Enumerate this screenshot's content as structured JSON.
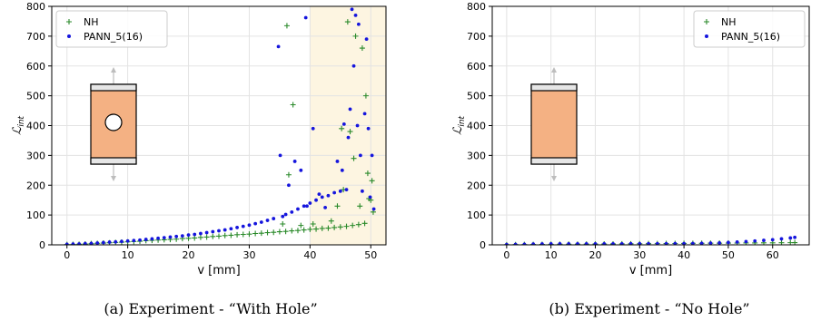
{
  "chart_data": [
    {
      "type": "scatter",
      "caption": "(a) Experiment - “With Hole”",
      "xlabel": "v [mm]",
      "ylabel": "ℒ",
      "ylabel_sub": "int",
      "xlim": [
        -2.5,
        52.5
      ],
      "ylim": [
        0,
        800
      ],
      "xticks": [
        0,
        10,
        20,
        30,
        40,
        50
      ],
      "yticks": [
        0,
        100,
        200,
        300,
        400,
        500,
        600,
        700,
        800
      ],
      "grid": true,
      "legend_position": "top-left",
      "highlight_region": {
        "x": [
          40,
          52.5
        ],
        "color": "#fdf5e1"
      },
      "specimen": {
        "has_hole": true
      },
      "series": [
        {
          "name": "NH",
          "marker": "plus",
          "color": "#2a8a2a",
          "points": [
            [
              0,
              1
            ],
            [
              1,
              1.5
            ],
            [
              2,
              2
            ],
            [
              3,
              3
            ],
            [
              4,
              4
            ],
            [
              5,
              5
            ],
            [
              6,
              6
            ],
            [
              7,
              7
            ],
            [
              8,
              8
            ],
            [
              9,
              9
            ],
            [
              10,
              10
            ],
            [
              11,
              11
            ],
            [
              12,
              12
            ],
            [
              13,
              14
            ],
            [
              14,
              15
            ],
            [
              15,
              16
            ],
            [
              16,
              17
            ],
            [
              17,
              18
            ],
            [
              18,
              19
            ],
            [
              19,
              21
            ],
            [
              20,
              22
            ],
            [
              21,
              23
            ],
            [
              22,
              25
            ],
            [
              23,
              26
            ],
            [
              24,
              28
            ],
            [
              25,
              29
            ],
            [
              26,
              31
            ],
            [
              27,
              32
            ],
            [
              28,
              34
            ],
            [
              29,
              35
            ],
            [
              30,
              36
            ],
            [
              31,
              38
            ],
            [
              32,
              39
            ],
            [
              33,
              41
            ],
            [
              34,
              42
            ],
            [
              35,
              44
            ],
            [
              35.5,
              70
            ],
            [
              36,
              45
            ],
            [
              36.2,
              735
            ],
            [
              36.5,
              235
            ],
            [
              37,
              47
            ],
            [
              37.2,
              470
            ],
            [
              38,
              48
            ],
            [
              38.5,
              65
            ],
            [
              39,
              50
            ],
            [
              40,
              52
            ],
            [
              40.5,
              70
            ],
            [
              41,
              53
            ],
            [
              42,
              55
            ],
            [
              43,
              56
            ],
            [
              43.5,
              80
            ],
            [
              44,
              58
            ],
            [
              44.5,
              130
            ],
            [
              45,
              60
            ],
            [
              45.2,
              390
            ],
            [
              45.5,
              185
            ],
            [
              46,
              62
            ],
            [
              46.2,
              748
            ],
            [
              46.6,
              380
            ],
            [
              47,
              65
            ],
            [
              47.2,
              290
            ],
            [
              47.5,
              700
            ],
            [
              48,
              68
            ],
            [
              48.2,
              130
            ],
            [
              48.6,
              660
            ],
            [
              49,
              72
            ],
            [
              49.2,
              500
            ],
            [
              49.5,
              240
            ],
            [
              49.7,
              155
            ],
            [
              50,
              150
            ],
            [
              50.2,
              215
            ],
            [
              50.4,
              110
            ]
          ]
        },
        {
          "name": "PANN_5(16)",
          "marker": "dot",
          "color": "#1515dd",
          "points": [
            [
              0,
              2
            ],
            [
              1,
              2.5
            ],
            [
              2,
              3
            ],
            [
              3,
              4
            ],
            [
              4,
              5
            ],
            [
              5,
              6
            ],
            [
              6,
              7.5
            ],
            [
              7,
              9
            ],
            [
              8,
              10
            ],
            [
              9,
              11.5
            ],
            [
              10,
              13
            ],
            [
              11,
              14.5
            ],
            [
              12,
              16
            ],
            [
              13,
              18
            ],
            [
              14,
              20
            ],
            [
              15,
              22
            ],
            [
              16,
              24
            ],
            [
              17,
              26
            ],
            [
              18,
              28
            ],
            [
              19,
              30
            ],
            [
              20,
              33
            ],
            [
              21,
              35
            ],
            [
              22,
              38
            ],
            [
              23,
              41
            ],
            [
              24,
              44
            ],
            [
              25,
              47
            ],
            [
              26,
              50
            ],
            [
              27,
              54
            ],
            [
              28,
              58
            ],
            [
              29,
              62
            ],
            [
              30,
              66
            ],
            [
              31,
              71
            ],
            [
              32,
              76
            ],
            [
              33,
              82
            ],
            [
              34,
              88
            ],
            [
              34.8,
              665
            ],
            [
              35.1,
              300
            ],
            [
              35.5,
              95
            ],
            [
              36,
              102
            ],
            [
              36.5,
              200
            ],
            [
              37,
              110
            ],
            [
              37.5,
              280
            ],
            [
              38,
              120
            ],
            [
              38.5,
              250
            ],
            [
              39,
              130
            ],
            [
              39.3,
              762
            ],
            [
              39.5,
              130
            ],
            [
              40,
              140
            ],
            [
              40.5,
              390
            ],
            [
              41,
              150
            ],
            [
              41.5,
              170
            ],
            [
              42,
              160
            ],
            [
              42.5,
              125
            ],
            [
              43,
              165
            ],
            [
              44,
              175
            ],
            [
              44.5,
              280
            ],
            [
              45,
              180
            ],
            [
              45.3,
              250
            ],
            [
              45.6,
              405
            ],
            [
              46,
              185
            ],
            [
              46.3,
              360
            ],
            [
              46.6,
              455
            ],
            [
              46.9,
              790
            ],
            [
              47.2,
              600
            ],
            [
              47.5,
              770
            ],
            [
              47.8,
              400
            ],
            [
              48,
              740
            ],
            [
              48.3,
              300
            ],
            [
              48.6,
              180
            ],
            [
              49,
              440
            ],
            [
              49.3,
              690
            ],
            [
              49.6,
              390
            ],
            [
              49.9,
              160
            ],
            [
              50.2,
              300
            ],
            [
              50.5,
              120
            ]
          ]
        }
      ]
    },
    {
      "type": "scatter",
      "caption": "(b) Experiment - “No Hole”",
      "xlabel": "v [mm]",
      "ylabel": "ℒ",
      "ylabel_sub": "int",
      "xlim": [
        -3.25,
        68.25
      ],
      "ylim": [
        0,
        800
      ],
      "xticks": [
        0,
        10,
        20,
        30,
        40,
        50,
        60
      ],
      "yticks": [
        0,
        100,
        200,
        300,
        400,
        500,
        600,
        700,
        800
      ],
      "grid": true,
      "legend_position": "top-right",
      "specimen": {
        "has_hole": false
      },
      "series": [
        {
          "name": "NH",
          "marker": "plus",
          "color": "#2a8a2a",
          "points": [
            [
              0,
              0.5
            ],
            [
              2,
              0.8
            ],
            [
              4,
              1
            ],
            [
              6,
              1.2
            ],
            [
              8,
              1.5
            ],
            [
              10,
              1.8
            ],
            [
              12,
              2
            ],
            [
              14,
              2.2
            ],
            [
              16,
              2.4
            ],
            [
              18,
              2.6
            ],
            [
              20,
              2.8
            ],
            [
              22,
              3
            ],
            [
              24,
              3.2
            ],
            [
              26,
              3.4
            ],
            [
              28,
              3.6
            ],
            [
              30,
              3.8
            ],
            [
              32,
              4
            ],
            [
              34,
              4.2
            ],
            [
              36,
              4.4
            ],
            [
              38,
              4.6
            ],
            [
              40,
              4.8
            ],
            [
              42,
              5
            ],
            [
              44,
              5.2
            ],
            [
              46,
              5.4
            ],
            [
              48,
              5.6
            ],
            [
              50,
              5.8
            ],
            [
              52,
              6
            ],
            [
              54,
              6.2
            ],
            [
              56,
              6.4
            ],
            [
              58,
              6.6
            ],
            [
              60,
              6.8
            ],
            [
              62,
              7
            ],
            [
              64,
              7.2
            ],
            [
              65,
              7.4
            ]
          ]
        },
        {
          "name": "PANN_5(16)",
          "marker": "dot",
          "color": "#1515dd",
          "points": [
            [
              0,
              1
            ],
            [
              2,
              1.5
            ],
            [
              4,
              2
            ],
            [
              6,
              2.5
            ],
            [
              8,
              3
            ],
            [
              10,
              3.2
            ],
            [
              12,
              3.3
            ],
            [
              14,
              3.4
            ],
            [
              16,
              3.5
            ],
            [
              18,
              3.5
            ],
            [
              20,
              3.5
            ],
            [
              22,
              3.5
            ],
            [
              24,
              3.5
            ],
            [
              26,
              3.5
            ],
            [
              28,
              3.6
            ],
            [
              30,
              3.6
            ],
            [
              32,
              3.7
            ],
            [
              34,
              3.8
            ],
            [
              36,
              3.9
            ],
            [
              38,
              4
            ],
            [
              40,
              4.2
            ],
            [
              42,
              4.5
            ],
            [
              44,
              5
            ],
            [
              46,
              5.5
            ],
            [
              48,
              6.5
            ],
            [
              50,
              8
            ],
            [
              52,
              9.5
            ],
            [
              54,
              11
            ],
            [
              56,
              13
            ],
            [
              58,
              15
            ],
            [
              60,
              17
            ],
            [
              62,
              20
            ],
            [
              64,
              23
            ],
            [
              65,
              25
            ]
          ]
        }
      ]
    }
  ]
}
